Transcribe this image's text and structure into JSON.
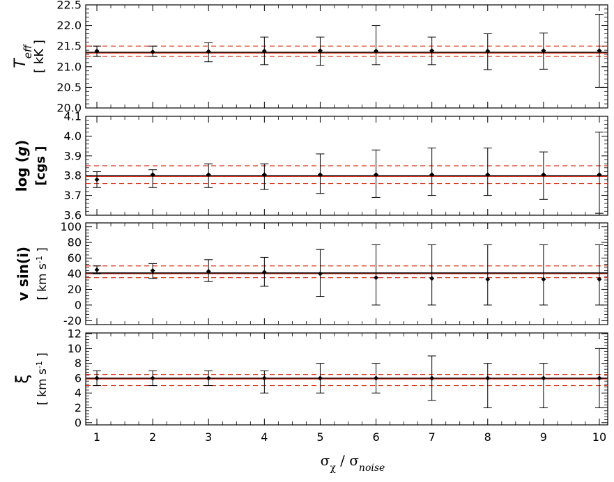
{
  "chart_data": [
    {
      "type": "scatter",
      "id": "teff",
      "ylabel_main": "T",
      "ylabel_sub": "eff",
      "ylabel_unit": "[ kK ]",
      "ylim": [
        20.0,
        22.5
      ],
      "yticks": [
        20.0,
        20.5,
        21.0,
        21.5,
        22.0,
        22.5
      ],
      "ytick_labels": [
        "20.0",
        "20.5",
        "21.0",
        "21.5",
        "22.0",
        "22.5"
      ],
      "x": [
        1,
        2,
        3,
        4,
        5,
        6,
        7,
        8,
        9,
        10
      ],
      "y": [
        21.38,
        21.36,
        21.37,
        21.38,
        21.39,
        21.38,
        21.39,
        21.38,
        21.39,
        21.39
      ],
      "err_low": [
        21.25,
        21.25,
        21.12,
        21.05,
        21.03,
        21.05,
        21.05,
        20.93,
        20.94,
        20.5
      ],
      "err_high": [
        21.5,
        21.5,
        21.58,
        21.72,
        21.72,
        22.0,
        21.72,
        21.8,
        21.82,
        22.27
      ],
      "ref_line": 21.35,
      "ref_band": [
        21.25,
        21.5
      ]
    },
    {
      "type": "scatter",
      "id": "logg",
      "ylabel_main": "log (",
      "ylabel_italic": "g",
      "ylabel_close": ")",
      "ylabel_unit": "[cgs ]",
      "ylim": [
        3.6,
        4.1
      ],
      "yticks": [
        3.6,
        3.7,
        3.8,
        3.9,
        4.0,
        4.1
      ],
      "ytick_labels": [
        "3.6",
        "3.7",
        "3.8",
        "3.9",
        "4.0",
        "4.1"
      ],
      "x": [
        1,
        2,
        3,
        4,
        5,
        6,
        7,
        8,
        9,
        10
      ],
      "y": [
        3.78,
        3.805,
        3.805,
        3.805,
        3.805,
        3.805,
        3.805,
        3.805,
        3.805,
        3.805
      ],
      "err_low": [
        3.74,
        3.74,
        3.74,
        3.73,
        3.71,
        3.69,
        3.7,
        3.7,
        3.68,
        3.61
      ],
      "err_high": [
        3.82,
        3.83,
        3.86,
        3.86,
        3.91,
        3.93,
        3.94,
        3.94,
        3.92,
        4.02
      ],
      "ref_line": 3.8,
      "ref_band": [
        3.76,
        3.85
      ]
    },
    {
      "type": "scatter",
      "id": "vsini",
      "ylabel_main": "v sin(i)",
      "ylabel_unit": "[ km s",
      "ylabel_sup": "-1",
      "ylabel_close": " ]",
      "ylim": [
        -25,
        105
      ],
      "yticks": [
        -20,
        0,
        20,
        40,
        60,
        80,
        100
      ],
      "ytick_labels": [
        "-20",
        "0",
        "20",
        "40",
        "60",
        "80",
        "100"
      ],
      "x": [
        1,
        2,
        3,
        4,
        5,
        6,
        7,
        8,
        9,
        10
      ],
      "y": [
        45,
        44,
        43,
        42,
        40,
        35,
        34,
        33,
        33,
        33
      ],
      "err_low": [
        40,
        34,
        30,
        24,
        11,
        0,
        0,
        0,
        0,
        0
      ],
      "err_high": [
        50,
        53,
        58,
        61,
        71,
        77,
        77,
        77,
        77,
        77
      ],
      "ref_line": 41,
      "ref_band": [
        35,
        50
      ]
    },
    {
      "type": "scatter",
      "id": "xi",
      "ylabel_main": "ξ",
      "ylabel_unit": "[ km s",
      "ylabel_sup": "-1",
      "ylabel_close": " ]",
      "ylim": [
        -0.3,
        12.1
      ],
      "yticks": [
        0,
        2,
        4,
        6,
        8,
        10,
        12
      ],
      "ytick_labels": [
        "0",
        "2",
        "4",
        "6",
        "8",
        "10",
        "12"
      ],
      "x": [
        1,
        2,
        3,
        4,
        5,
        6,
        7,
        8,
        9,
        10
      ],
      "y": [
        6,
        6,
        6,
        6,
        6,
        6,
        6,
        6,
        6,
        6
      ],
      "err_low": [
        5,
        5,
        5,
        4,
        4,
        4,
        3,
        2,
        2,
        2
      ],
      "err_high": [
        7,
        7,
        7,
        7,
        8,
        8,
        9,
        8,
        8,
        10
      ],
      "ref_line": 6,
      "ref_band": [
        5,
        6.5
      ]
    }
  ],
  "xaxis": {
    "xlim": [
      0.8,
      10.15
    ],
    "xticks": [
      1,
      2,
      3,
      4,
      5,
      6,
      7,
      8,
      9,
      10
    ],
    "xtick_labels": [
      "1",
      "2",
      "3",
      "4",
      "5",
      "6",
      "7",
      "8",
      "9",
      "10"
    ],
    "xlabel_sigma": "σ",
    "xlabel_sub1": "χ",
    "xlabel_sep": " / σ",
    "xlabel_sub2": "noise"
  },
  "colors": {
    "points": "#000000",
    "ref_solid": "#000000",
    "ref_red": "#e0311b"
  }
}
